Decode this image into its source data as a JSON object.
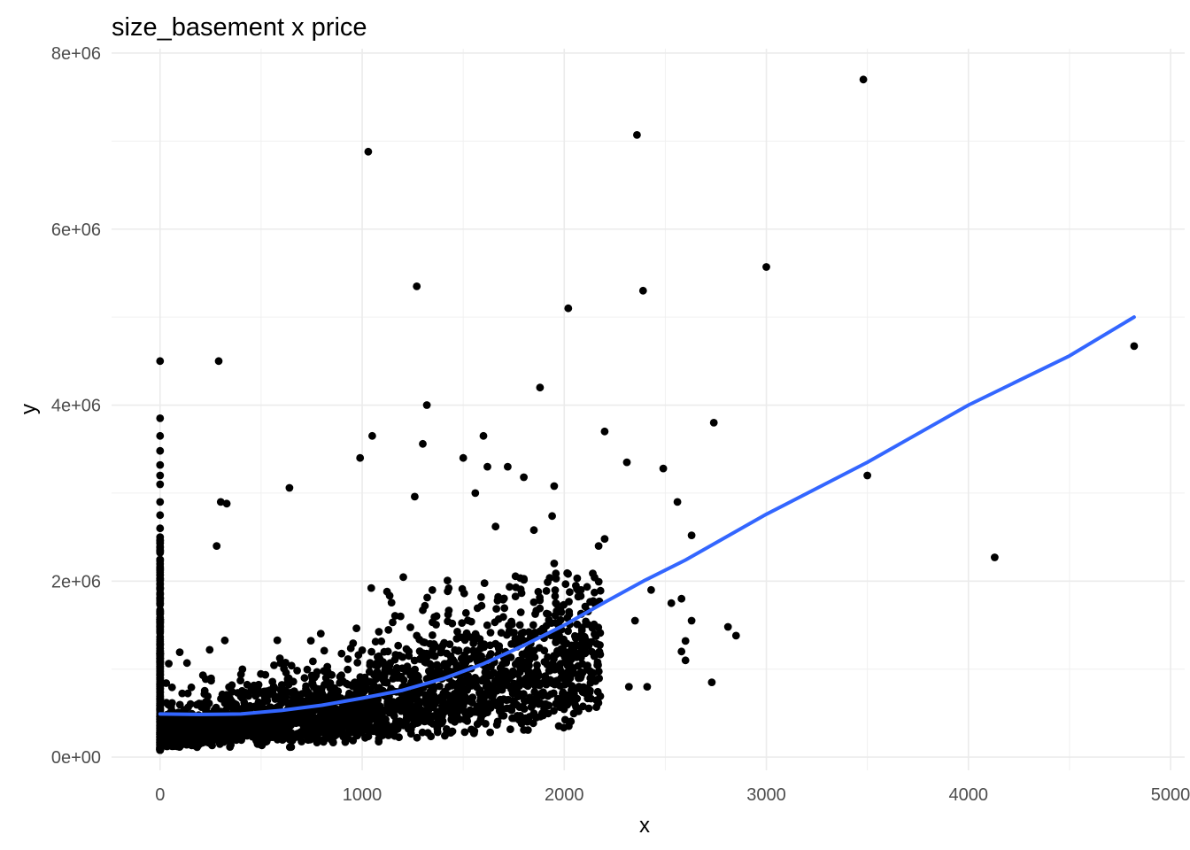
{
  "chart_data": {
    "type": "scatter",
    "title": "size_basement x price",
    "xlabel": "x",
    "ylabel": "y",
    "xlim": [
      -240,
      5070
    ],
    "ylim": [
      -150000,
      8050000
    ],
    "x_ticks": [
      0,
      1000,
      2000,
      3000,
      4000,
      5000
    ],
    "x_tick_labels": [
      "0",
      "1000",
      "2000",
      "3000",
      "4000",
      "5000"
    ],
    "y_ticks": [
      0,
      2000000,
      4000000,
      6000000,
      8000000
    ],
    "y_tick_labels": [
      "0e+00",
      "2e+06",
      "4e+06",
      "6e+06",
      "8e+06"
    ],
    "grid": true,
    "point_color": "#000000",
    "smooth_color": "#3366ff",
    "outliers": [
      [
        0,
        4500000
      ],
      [
        0,
        3850000
      ],
      [
        0,
        3650000
      ],
      [
        0,
        3480000
      ],
      [
        0,
        3320000
      ],
      [
        0,
        3200000
      ],
      [
        0,
        3100000
      ],
      [
        0,
        2900000
      ],
      [
        0,
        2750000
      ],
      [
        0,
        2600000
      ],
      [
        0,
        2500000
      ],
      [
        290,
        4500000
      ],
      [
        1030,
        6880000
      ],
      [
        1270,
        5350000
      ],
      [
        1320,
        4000000
      ],
      [
        1050,
        3650000
      ],
      [
        1880,
        4200000
      ],
      [
        2020,
        5100000
      ],
      [
        2360,
        7070000
      ],
      [
        2390,
        5300000
      ],
      [
        3000,
        5570000
      ],
      [
        3480,
        7700000
      ],
      [
        4820,
        4670000
      ],
      [
        3500,
        3200000
      ],
      [
        4130,
        2270000
      ],
      [
        2740,
        3800000
      ],
      [
        2200,
        3700000
      ],
      [
        2310,
        3350000
      ],
      [
        2490,
        3280000
      ],
      [
        1300,
        3560000
      ],
      [
        1600,
        3650000
      ],
      [
        1500,
        3400000
      ],
      [
        990,
        3400000
      ],
      [
        1950,
        3080000
      ],
      [
        2560,
        2900000
      ],
      [
        2630,
        2520000
      ],
      [
        2200,
        2480000
      ],
      [
        2170,
        2400000
      ],
      [
        2530,
        1750000
      ],
      [
        2580,
        1800000
      ],
      [
        2430,
        1900000
      ],
      [
        2350,
        1550000
      ],
      [
        2630,
        1550000
      ],
      [
        2810,
        1480000
      ],
      [
        2850,
        1380000
      ],
      [
        2600,
        1320000
      ],
      [
        2580,
        1200000
      ],
      [
        2600,
        1100000
      ],
      [
        2730,
        850000
      ],
      [
        2410,
        800000
      ],
      [
        2320,
        800000
      ],
      [
        300,
        2900000
      ],
      [
        330,
        2880000
      ],
      [
        280,
        2400000
      ],
      [
        640,
        3060000
      ],
      [
        1260,
        2960000
      ],
      [
        1560,
        3000000
      ],
      [
        1620,
        3300000
      ],
      [
        1720,
        3300000
      ],
      [
        1800,
        3180000
      ],
      [
        1940,
        2740000
      ],
      [
        1660,
        2620000
      ],
      [
        1850,
        2580000
      ],
      [
        1950,
        2200000
      ]
    ],
    "smooth": [
      [
        0,
        490000
      ],
      [
        200,
        485000
      ],
      [
        400,
        490000
      ],
      [
        600,
        530000
      ],
      [
        800,
        590000
      ],
      [
        1000,
        670000
      ],
      [
        1200,
        760000
      ],
      [
        1400,
        890000
      ],
      [
        1600,
        1060000
      ],
      [
        1800,
        1270000
      ],
      [
        2000,
        1500000
      ],
      [
        2200,
        1760000
      ],
      [
        2400,
        2010000
      ],
      [
        2600,
        2240000
      ],
      [
        3000,
        2760000
      ],
      [
        3500,
        3350000
      ],
      [
        4000,
        4000000
      ],
      [
        4500,
        4560000
      ],
      [
        4820,
        5000000
      ]
    ]
  }
}
